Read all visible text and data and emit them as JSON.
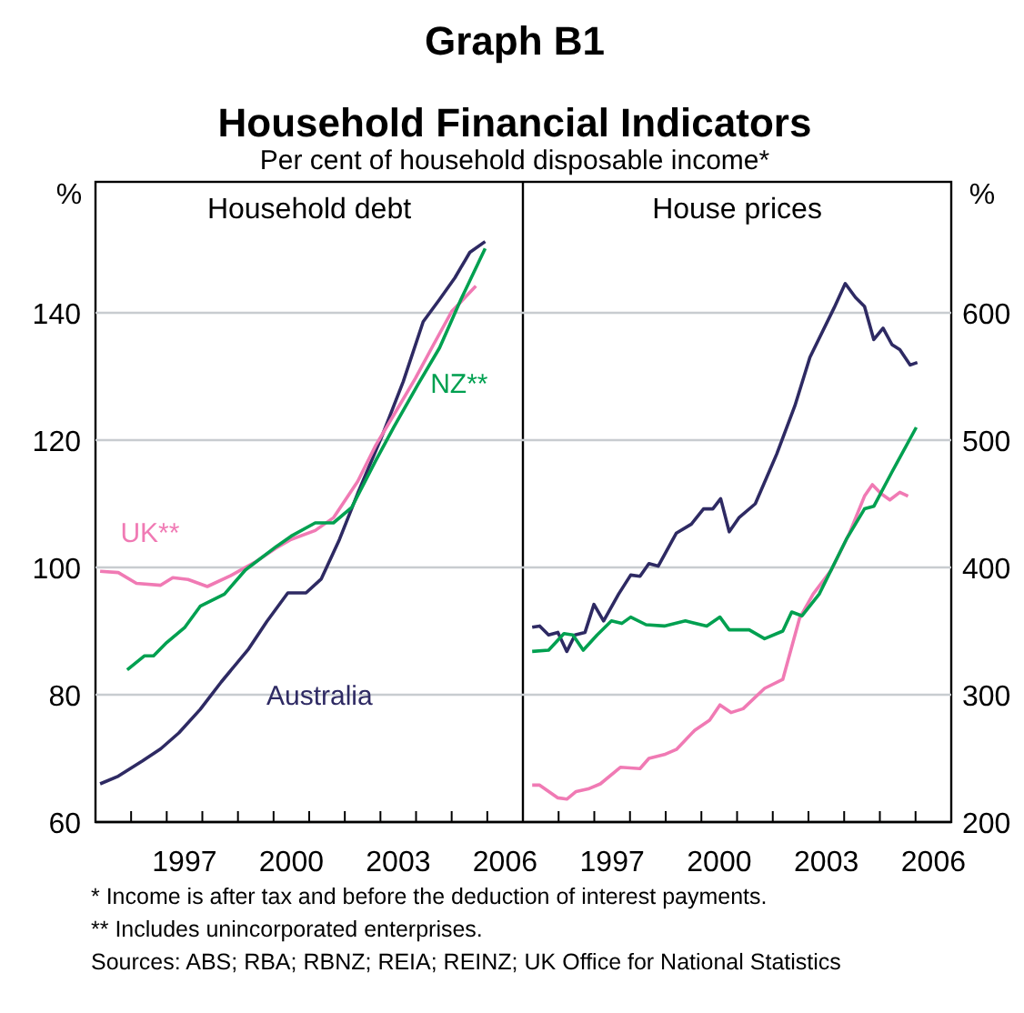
{
  "chart_data": [
    {
      "type": "line",
      "title": "Household debt",
      "ylabel": "%",
      "annotations": [
        "Graph B1",
        "Household Financial Indicators",
        "Per cent of household disposable income*"
      ],
      "grid": "y",
      "tick_labels": "xy",
      "xlim": [
        1995,
        2007
      ],
      "ylim": [
        60,
        160
      ],
      "yticks": [
        60,
        80,
        100,
        120,
        140
      ],
      "xticks": [
        {
          "value": 1995,
          "label": null
        },
        {
          "value": 1996,
          "label": null
        },
        {
          "value": 1997,
          "label": null
        },
        {
          "value": 1997.5,
          "label": "1997"
        },
        {
          "value": 1998,
          "label": null
        },
        {
          "value": 1999,
          "label": null
        },
        {
          "value": 2000,
          "label": null
        },
        {
          "value": 2000.5,
          "label": "2000"
        },
        {
          "value": 2001,
          "label": null
        },
        {
          "value": 2002,
          "label": null
        },
        {
          "value": 2003,
          "label": null
        },
        {
          "value": 2003.5,
          "label": "2003"
        },
        {
          "value": 2004,
          "label": null
        },
        {
          "value": 2005,
          "label": null
        },
        {
          "value": 2006,
          "label": null
        },
        {
          "value": 2006.5,
          "label": "2006"
        },
        {
          "value": 2007,
          "label": null
        }
      ],
      "series": [
        {
          "name": "Australia",
          "color": "#2e2a63",
          "x": [
            1995.13,
            1995.64,
            1996.32,
            1996.83,
            1997.34,
            1997.94,
            1998.53,
            1999.3,
            1999.81,
            2000.4,
            2000.91,
            2001.34,
            2001.85,
            2002.36,
            2003.04,
            2003.64,
            2004.2,
            2004.66,
            2005.09,
            2005.51,
            2005.94
          ],
          "values": [
            66.0,
            67.2,
            69.6,
            71.5,
            74.0,
            77.7,
            82.0,
            87.2,
            91.5,
            96.0,
            96.0,
            98.2,
            104.4,
            111.6,
            120.6,
            129.2,
            138.6,
            142.1,
            145.5,
            149.5,
            151.2
          ]
        },
        {
          "name": "UK**",
          "color": "#f07ab4",
          "x": [
            1995.13,
            1995.64,
            1996.15,
            1996.83,
            1997.17,
            1997.6,
            1998.14,
            1998.79,
            1999.47,
            2000.06,
            2000.49,
            2001.17,
            2001.68,
            2002.36,
            2002.87,
            2003.38,
            2003.98,
            2004.49,
            2005.0,
            2005.68
          ],
          "values": [
            99.4,
            99.2,
            97.5,
            97.2,
            98.4,
            98.1,
            97.0,
            98.7,
            100.8,
            103.0,
            104.4,
            105.8,
            107.8,
            113.5,
            119.2,
            124.0,
            129.7,
            135.0,
            140.2,
            144.2
          ]
        },
        {
          "name": "NZ**",
          "color": "#00a050",
          "x": [
            1995.89,
            1996.37,
            1996.63,
            1997.0,
            1997.51,
            1997.94,
            1998.62,
            1999.21,
            2000.08,
            2000.49,
            2001.17,
            2001.68,
            2002.19,
            2002.87,
            2003.38,
            2004.06,
            2004.66,
            2005.26,
            2005.94
          ],
          "values": [
            83.9,
            86.1,
            86.1,
            88.2,
            90.6,
            93.9,
            95.8,
            99.6,
            103.3,
            104.9,
            107.0,
            107.0,
            109.4,
            116.8,
            122.1,
            128.8,
            134.5,
            142.1,
            150.1
          ]
        }
      ]
    },
    {
      "type": "line",
      "title": "House prices",
      "ylabel": "%",
      "annotations": [
        "*   Income is after tax and before the deduction of interest payments.",
        "** Includes unincorporated enterprises.",
        "Sources: ABS; RBA; RBNZ; REIA; REINZ; UK Office for National Statistics"
      ],
      "grid": "y",
      "tick_labels": "xy",
      "xlim": [
        1995,
        2007
      ],
      "ylim": [
        200,
        700
      ],
      "yticks": [
        200,
        300,
        400,
        500,
        600
      ],
      "xticks": [
        {
          "value": 1995,
          "label": null
        },
        {
          "value": 1996,
          "label": null
        },
        {
          "value": 1997,
          "label": null
        },
        {
          "value": 1997.5,
          "label": "1997"
        },
        {
          "value": 1998,
          "label": null
        },
        {
          "value": 1999,
          "label": null
        },
        {
          "value": 2000,
          "label": null
        },
        {
          "value": 2000.5,
          "label": "2000"
        },
        {
          "value": 2001,
          "label": null
        },
        {
          "value": 2002,
          "label": null
        },
        {
          "value": 2003,
          "label": null
        },
        {
          "value": 2003.5,
          "label": "2003"
        },
        {
          "value": 2004,
          "label": null
        },
        {
          "value": 2005,
          "label": null
        },
        {
          "value": 2006,
          "label": null
        },
        {
          "value": 2006.5,
          "label": "2006"
        },
        {
          "value": 2007,
          "label": null
        }
      ],
      "series": [
        {
          "color": "#2e2a63",
          "x": [
            1995.26,
            1995.47,
            1995.72,
            1995.98,
            1996.23,
            1996.46,
            1996.74,
            1996.99,
            1997.26,
            1997.68,
            1998.02,
            1998.28,
            1998.53,
            1998.79,
            1999.3,
            1999.72,
            2000.06,
            2000.32,
            2000.54,
            2000.78,
            2001.05,
            2001.51,
            2002.11,
            2002.62,
            2003.04,
            2003.72,
            2004.03,
            2004.32,
            2004.57,
            2004.83,
            2005.09,
            2005.34,
            2005.56,
            2005.85,
            2006.05
          ],
          "values": [
            353,
            354,
            347,
            349,
            334,
            347,
            349,
            371,
            358,
            379,
            394,
            393,
            403,
            401,
            427,
            434,
            446,
            446,
            454,
            428,
            439,
            450,
            489,
            527,
            565,
            604,
            623,
            612,
            605,
            579,
            588,
            575,
            571,
            559,
            561
          ]
        },
        {
          "color": "#f07ab4",
          "x": [
            1995.26,
            1995.47,
            1995.98,
            1996.23,
            1996.49,
            1996.83,
            1997.17,
            1997.73,
            1998.28,
            1998.53,
            1998.96,
            1999.3,
            1999.81,
            2000.23,
            2000.52,
            2000.83,
            2001.17,
            2001.77,
            2002.28,
            2002.75,
            2003.13,
            2003.64,
            2004.15,
            2004.57,
            2004.79,
            2005.03,
            2005.28,
            2005.56,
            2005.79
          ],
          "values": [
            229,
            229,
            219,
            218,
            224,
            226,
            230,
            243,
            242,
            250,
            253,
            257,
            272,
            280,
            292,
            286,
            289,
            305,
            312,
            360,
            379,
            398,
            427,
            456,
            465,
            458,
            453,
            459,
            456
          ]
        },
        {
          "color": "#00a050",
          "x": [
            1995.26,
            1995.72,
            1996.15,
            1996.4,
            1996.69,
            1997.08,
            1997.48,
            1997.77,
            1998.02,
            1998.45,
            1998.96,
            1999.55,
            2000.15,
            2000.52,
            2000.78,
            2001.34,
            2001.77,
            2002.28,
            2002.53,
            2002.82,
            2003.3,
            2004.06,
            2004.57,
            2004.83,
            2005.34,
            2006.02
          ],
          "values": [
            334,
            335,
            348,
            347,
            335,
            347,
            358,
            356,
            361,
            355,
            354,
            358,
            354,
            361,
            351,
            351,
            344,
            350,
            365,
            362,
            379,
            422,
            446,
            448,
            475,
            510
          ]
        }
      ]
    }
  ]
}
